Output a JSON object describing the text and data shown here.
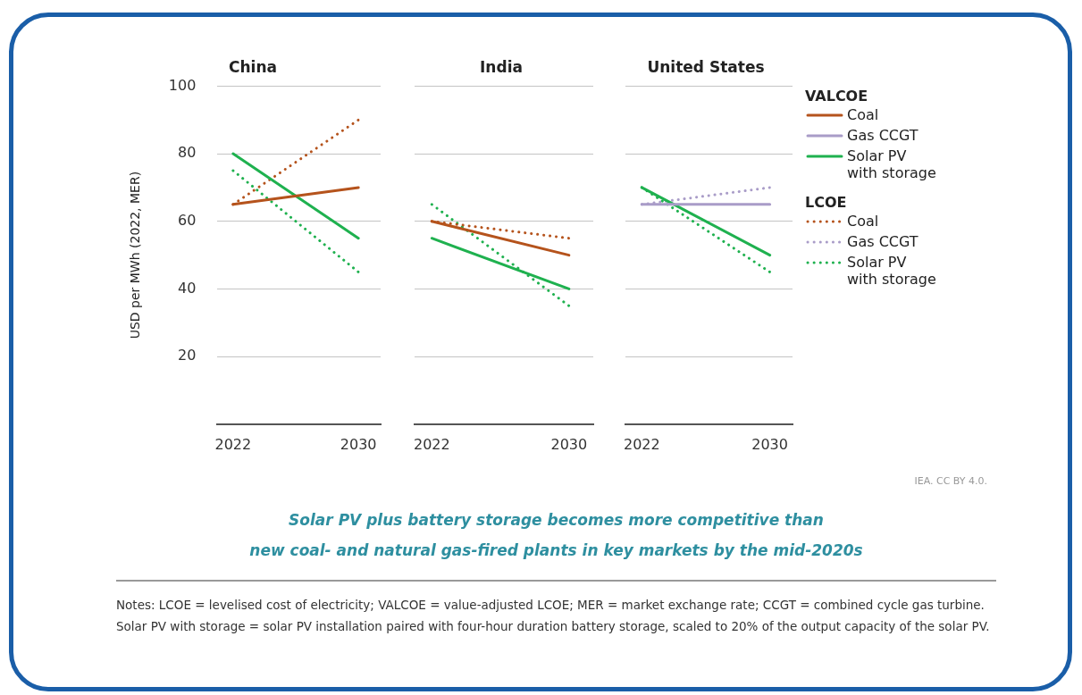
{
  "chart_data": [
    {
      "type": "line",
      "title": "China",
      "ylabel": "USD per MWh (2022, MER)",
      "x": [
        "2022",
        "2030"
      ],
      "xlim": [
        "2021-01",
        "2031-06"
      ],
      "xticks": [
        "2022",
        "2030"
      ],
      "ylim": [
        0,
        100
      ],
      "yticks": [
        20,
        40,
        60,
        80,
        100
      ],
      "grid": "y",
      "marker": "none",
      "series": [
        {
          "color": "#b5531c",
          "values": [
            65,
            70
          ],
          "line_style": "solid"
        },
        {
          "color": "#1fb14f",
          "values": [
            80,
            55
          ],
          "line_style": "solid"
        },
        {
          "color": "#b5531c",
          "values": [
            65,
            90
          ],
          "line_style": "dotted"
        },
        {
          "color": "#1fb14f",
          "values": [
            75,
            45
          ],
          "line_style": "dotted"
        }
      ]
    },
    {
      "type": "line",
      "title": "India",
      "x": [
        "2022",
        "2030"
      ],
      "xlim": [
        "2021-01",
        "2031-06"
      ],
      "xticks": [
        "2022",
        "2030"
      ],
      "ylim": [
        0,
        100
      ],
      "yticks": [
        20,
        40,
        60,
        80,
        100
      ],
      "grid": "y",
      "marker": "none",
      "tick_labels": "x",
      "series": [
        {
          "color": "#b5531c",
          "values": [
            60,
            50
          ],
          "line_style": "solid"
        },
        {
          "color": "#1fb14f",
          "values": [
            55,
            40
          ],
          "line_style": "solid"
        },
        {
          "color": "#b5531c",
          "values": [
            60,
            55
          ],
          "line_style": "dotted"
        },
        {
          "color": "#1fb14f",
          "values": [
            65,
            35
          ],
          "line_style": "dotted"
        }
      ]
    },
    {
      "type": "line",
      "title": "United States",
      "x": [
        "2022",
        "2030"
      ],
      "xlim": [
        "2021-01",
        "2031-06"
      ],
      "xticks": [
        "2022",
        "2030"
      ],
      "ylim": [
        0,
        100
      ],
      "yticks": [
        20,
        40,
        60,
        80,
        100
      ],
      "grid": "y",
      "marker": "none",
      "tick_labels": "x",
      "legend": "right",
      "annotations": [
        "VALCOE",
        "LCOE"
      ],
      "series": [
        {
          "name": "Coal",
          "color": "#b5531c",
          "values": [
            null,
            null
          ],
          "line_style": "solid"
        },
        {
          "name": "Gas CCGT",
          "color": "#a99cc8",
          "values": [
            65,
            65
          ],
          "line_style": "solid"
        },
        {
          "name": "Solar PV\nwith storage",
          "color": "#1fb14f",
          "values": [
            70,
            50
          ],
          "line_style": "solid"
        },
        {
          "name": "Coal",
          "color": "#b5531c",
          "values": [
            null,
            null
          ],
          "line_style": "dotted"
        },
        {
          "name": "Gas CCGT",
          "color": "#a99cc8",
          "values": [
            65,
            70
          ],
          "line_style": "dotted"
        },
        {
          "name": "Solar PV\nwith storage",
          "color": "#1fb14f",
          "values": [
            70,
            45
          ],
          "line_style": "dotted"
        }
      ]
    },
    {
      "type": "other",
      "title": "Solar PV plus battery storage becomes more competitive than\nnew coal- and natural gas-fired plants in key markets by the mid-2020s",
      "annotations": [
        "IEA. CC BY 4.0.",
        "Notes: LCOE = levelised cost of electricity; VALCOE = value-adjusted LCOE; MER = market exchange rate; CCGT = combined cycle gas turbine. Solar PV with storage = solar PV installation paired with four-hour duration battery storage, scaled to 20% of the output capacity of the solar PV."
      ]
    }
  ]
}
